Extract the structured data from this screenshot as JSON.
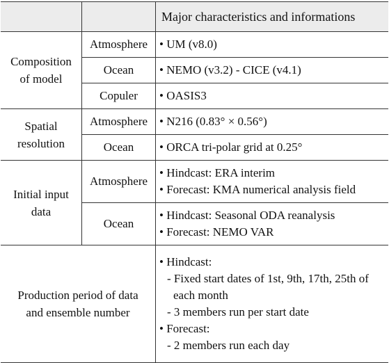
{
  "table": {
    "header": "Major characteristics and informations",
    "groups": [
      {
        "label": [
          "Composition",
          "of model"
        ],
        "rows": [
          {
            "component": "Atmosphere",
            "lines": [
              "• UM (v8.0)"
            ],
            "height": 33
          },
          {
            "component": "Ocean",
            "lines": [
              "• NEMO (v3.2) - CICE (v4.1)"
            ]
          },
          {
            "component": "Copuler",
            "lines": [
              "• OASIS3"
            ]
          }
        ]
      },
      {
        "label": [
          "Spatial",
          "resolution"
        ],
        "rows": [
          {
            "component": "Atmosphere",
            "lines": [
              "• N216 (0.83° × 0.56°)"
            ]
          },
          {
            "component": "Ocean",
            "lines": [
              "• ORCA tri-polar grid at 0.25°"
            ]
          }
        ]
      },
      {
        "label": [
          "Initial input",
          "data"
        ],
        "rows": [
          {
            "component": "Atmosphere",
            "lines": [
              "• Hindcast: ERA interim",
              "• Forecast: KMA numerical analysis field"
            ]
          },
          {
            "component": "Ocean",
            "lines": [
              "• Hindcast: Seasonal ODA reanalysis",
              "• Forecast: NEMO VAR"
            ]
          }
        ]
      },
      {
        "label": [
          "Production period of data",
          "and ensemble number"
        ],
        "rows": [
          {
            "lines": [
              "• Hindcast:",
              "- Fixed start dates of 1st, 9th, 17th, 25th of each month",
              "- 3 members run per start date",
              "• Forecast:",
              "- 2 members run each day"
            ]
          }
        ]
      }
    ]
  }
}
